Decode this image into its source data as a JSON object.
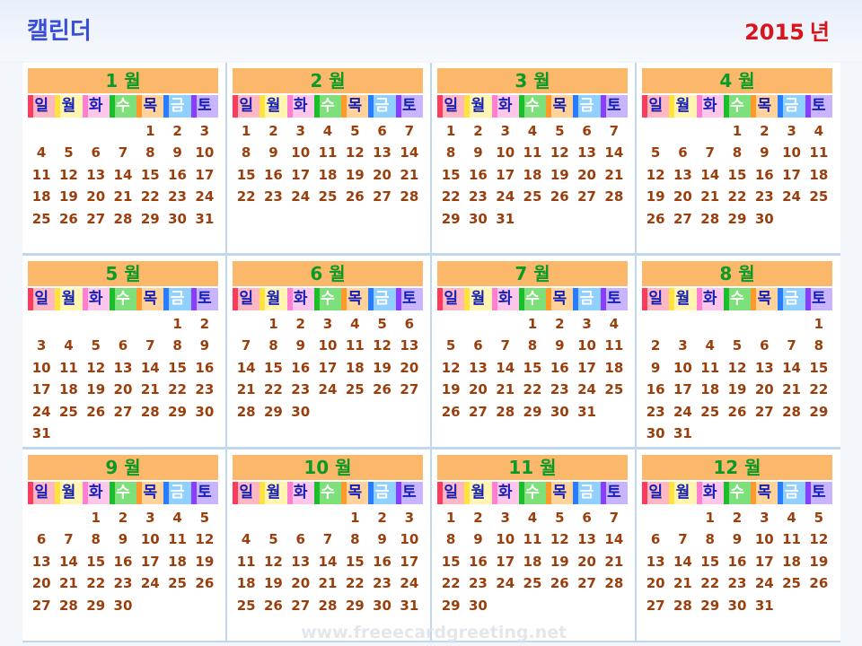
{
  "app_title": "캘린더",
  "year": "2015",
  "year_unit": "년",
  "weekday_labels": [
    "일",
    "월",
    "화",
    "수",
    "목",
    "금",
    "토"
  ],
  "months": [
    {
      "label": "1 월",
      "first_weekday": 4,
      "days_in_month": 31
    },
    {
      "label": "2 월",
      "first_weekday": 0,
      "days_in_month": 28
    },
    {
      "label": "3 월",
      "first_weekday": 0,
      "days_in_month": 31
    },
    {
      "label": "4 월",
      "first_weekday": 3,
      "days_in_month": 30
    },
    {
      "label": "5 월",
      "first_weekday": 5,
      "days_in_month": 31
    },
    {
      "label": "6 월",
      "first_weekday": 1,
      "days_in_month": 30
    },
    {
      "label": "7 월",
      "first_weekday": 3,
      "days_in_month": 31
    },
    {
      "label": "8 월",
      "first_weekday": 6,
      "days_in_month": 31
    },
    {
      "label": "9 월",
      "first_weekday": 2,
      "days_in_month": 30
    },
    {
      "label": "10 월",
      "first_weekday": 4,
      "days_in_month": 31
    },
    {
      "label": "11 월",
      "first_weekday": 0,
      "days_in_month": 30
    },
    {
      "label": "12 월",
      "first_weekday": 2,
      "days_in_month": 31
    }
  ],
  "watermark": "www.freeecardgreeting.net"
}
